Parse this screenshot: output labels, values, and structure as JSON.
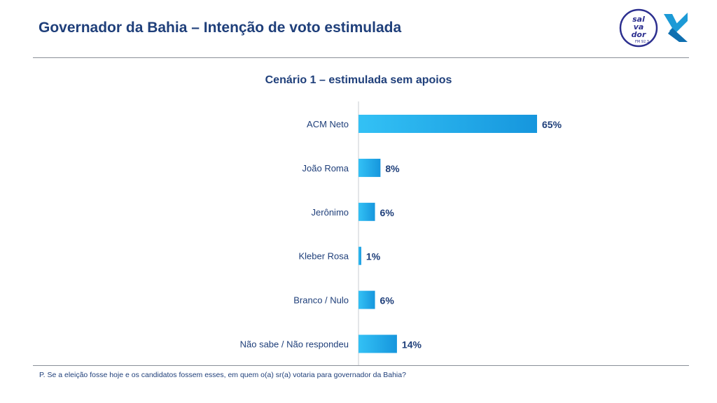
{
  "header": {
    "title": "Governador da Bahia – Intenção de voto estimulada",
    "logo_text": "sal va dor FM 92.3"
  },
  "colors": {
    "title": "#1f3f7a",
    "bar_light": "#33c1f5",
    "bar_dark": "#1696dd",
    "value_label": "#1f3f7a",
    "category_label": "#1f3f7a"
  },
  "chart_data": {
    "type": "bar",
    "orientation": "horizontal",
    "title": "Cenário 1 – estimulada sem apoios",
    "categories": [
      "ACM Neto",
      "João Roma",
      "Jerônimo",
      "Kleber Rosa",
      "Branco / Nulo",
      "Não sabe / Não respondeu"
    ],
    "values": [
      65,
      8,
      6,
      1,
      6,
      14
    ],
    "value_labels": [
      "65%",
      "8%",
      "6%",
      "1%",
      "6%",
      "14%"
    ],
    "unit": "%",
    "xlim": [
      0,
      65
    ],
    "grid": false,
    "legend": "none"
  },
  "footnote": "P. Se a eleição fosse hoje e os candidatos fossem esses, em quem o(a) sr(a) votaria para governador da Bahia?"
}
